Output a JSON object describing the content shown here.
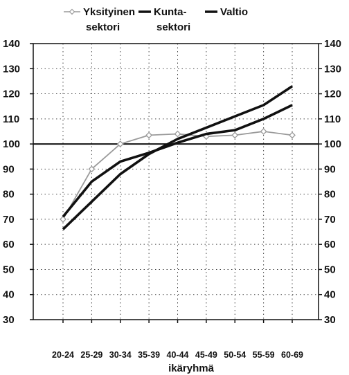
{
  "chart_data": {
    "type": "line",
    "title": "",
    "xlabel": "ikäryhmä",
    "ylabel": "",
    "ylim": [
      30,
      140
    ],
    "yticks": [
      30,
      40,
      50,
      60,
      70,
      80,
      90,
      100,
      110,
      120,
      130,
      140
    ],
    "y_right_axis": true,
    "grid": "dotted",
    "reference_line": 100,
    "legend_position": "top",
    "categories": [
      "20-24",
      "25-29",
      "30-34",
      "35-39",
      "40-44",
      "45-49",
      "50-54",
      "55-59",
      "60-69"
    ],
    "series": [
      {
        "name_lines": [
          "Yksityinen",
          "sektori"
        ],
        "color": "#9a9a9a",
        "marker": "diamond",
        "values": [
          70,
          90,
          100,
          103.5,
          104,
          103,
          103.5,
          105,
          103.5
        ]
      },
      {
        "name_lines": [
          "Kunta-",
          "sektori"
        ],
        "color": "#111111",
        "marker": "none",
        "values": [
          71,
          85,
          93,
          96.5,
          100.5,
          104,
          105.5,
          110,
          115.5
        ]
      },
      {
        "name_lines": [
          "Valtio"
        ],
        "color": "#111111",
        "marker": "none",
        "values": [
          66,
          77,
          88,
          96,
          102,
          106.5,
          111,
          115.5,
          123
        ]
      }
    ]
  }
}
